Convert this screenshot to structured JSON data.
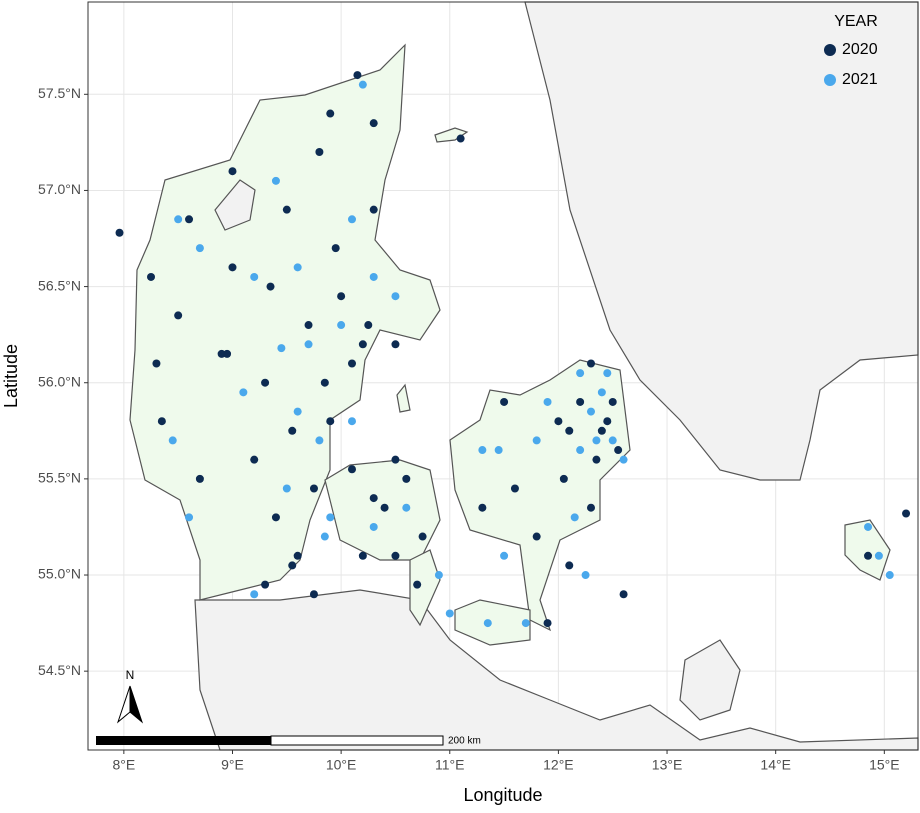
{
  "chart_data": {
    "type": "scatter",
    "xlabel": "Longitude",
    "ylabel": "Latitude",
    "legend_title": "YEAR",
    "legend": "top-right",
    "grid": true,
    "scale_label": "200 km",
    "north_label": "N",
    "xlim": [
      7.67,
      15.31
    ],
    "ylim": [
      54.09,
      57.98
    ],
    "xticks": [
      {
        "value": 8,
        "label": "8°E"
      },
      {
        "value": 9,
        "label": "9°E"
      },
      {
        "value": 10,
        "label": "10°E"
      },
      {
        "value": 11,
        "label": "11°E"
      },
      {
        "value": 12,
        "label": "12°E"
      },
      {
        "value": 13,
        "label": "13°E"
      },
      {
        "value": 14,
        "label": "14°E"
      },
      {
        "value": 15,
        "label": "15°E"
      }
    ],
    "yticks": [
      {
        "value": 54.5,
        "label": "54.5°N"
      },
      {
        "value": 55.0,
        "label": "55.0°N"
      },
      {
        "value": 55.5,
        "label": "55.5°N"
      },
      {
        "value": 56.0,
        "label": "56.0°N"
      },
      {
        "value": 56.5,
        "label": "56.5°N"
      },
      {
        "value": 57.0,
        "label": "57.0°N"
      },
      {
        "value": 57.5,
        "label": "57.5°N"
      }
    ],
    "series": [
      {
        "name": "2020",
        "color": "#0d2b52",
        "x": [
          7.96,
          8.25,
          8.3,
          8.35,
          8.5,
          8.6,
          8.7,
          8.9,
          8.95,
          9.0,
          9.0,
          9.2,
          9.3,
          9.35,
          9.4,
          9.5,
          9.55,
          9.6,
          9.7,
          9.75,
          9.8,
          9.85,
          9.9,
          9.95,
          10.0,
          10.1,
          10.15,
          10.2,
          10.25,
          10.3,
          10.3,
          10.5,
          9.9,
          9.55,
          9.3,
          9.75,
          10.3,
          10.4,
          10.6,
          10.5,
          10.2,
          10.1,
          10.75,
          10.7,
          11.5,
          11.6,
          11.8,
          11.9,
          12.0,
          12.05,
          12.2,
          12.3,
          12.4,
          12.5,
          12.55,
          12.3,
          12.1,
          12.6,
          14.85,
          15.2,
          11.1,
          12.35,
          12.45,
          12.1,
          11.3,
          10.5
        ],
        "values": [
          56.78,
          56.55,
          56.1,
          55.8,
          56.35,
          56.85,
          55.5,
          56.15,
          56.15,
          56.6,
          57.1,
          55.6,
          56.0,
          56.5,
          55.3,
          56.9,
          55.75,
          55.1,
          56.3,
          55.45,
          57.2,
          56.0,
          57.4,
          56.7,
          56.45,
          56.1,
          57.6,
          56.2,
          56.3,
          56.9,
          57.35,
          56.2,
          55.8,
          55.05,
          54.95,
          54.9,
          55.4,
          55.35,
          55.5,
          55.1,
          55.1,
          55.55,
          55.2,
          54.95,
          55.9,
          55.45,
          55.2,
          54.75,
          55.8,
          55.5,
          55.9,
          56.1,
          55.75,
          55.9,
          55.65,
          55.35,
          55.05,
          54.9,
          55.1,
          55.32,
          57.27,
          55.6,
          55.8,
          55.75,
          55.35,
          55.6
        ]
      },
      {
        "name": "2021",
        "color": "#4aa8ec",
        "x": [
          8.7,
          8.6,
          8.45,
          9.1,
          9.2,
          9.4,
          9.5,
          9.6,
          9.7,
          9.8,
          9.9,
          10.0,
          10.2,
          10.1,
          10.5,
          9.85,
          9.2,
          10.3,
          10.6,
          10.9,
          11.0,
          11.35,
          11.7,
          11.5,
          11.9,
          12.2,
          12.3,
          12.4,
          12.5,
          12.6,
          12.35,
          12.2,
          11.8,
          12.15,
          12.25,
          11.45,
          14.85,
          15.05,
          14.95,
          10.1,
          9.6,
          8.5,
          9.45,
          10.3,
          11.3,
          12.45
        ],
        "values": [
          56.7,
          55.3,
          55.7,
          55.95,
          56.55,
          57.05,
          55.45,
          56.6,
          56.2,
          55.7,
          55.3,
          56.3,
          57.55,
          56.85,
          56.45,
          55.2,
          54.9,
          55.25,
          55.35,
          55.0,
          54.8,
          54.75,
          54.75,
          55.1,
          55.9,
          56.05,
          55.85,
          55.95,
          55.7,
          55.6,
          55.7,
          55.65,
          55.7,
          55.3,
          55.0,
          55.65,
          55.25,
          55.0,
          55.1,
          55.8,
          55.85,
          56.85,
          56.18,
          56.55,
          55.65,
          56.05
        ]
      }
    ]
  }
}
